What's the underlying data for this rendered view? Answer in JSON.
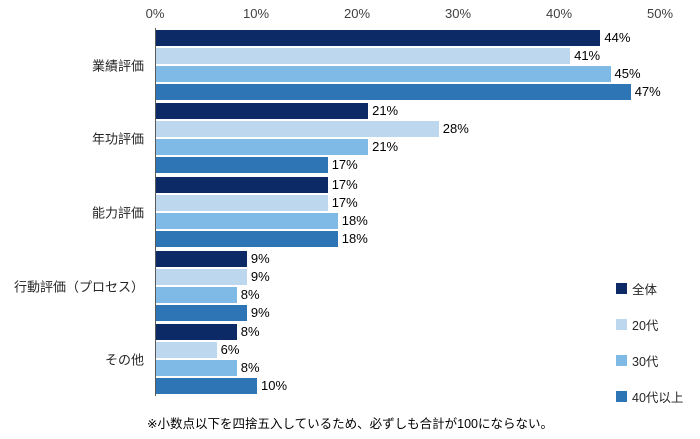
{
  "chart_data": {
    "type": "bar",
    "orientation": "horizontal",
    "title": "",
    "categories": [
      "業績評価",
      "年功評価",
      "能力評価",
      "行動評価（プロセス）",
      "その他"
    ],
    "series": [
      {
        "name": "全体",
        "color": "#0B2A66",
        "values": [
          44,
          21,
          17,
          9,
          8
        ]
      },
      {
        "name": "20代",
        "color": "#BDD7EE",
        "values": [
          41,
          28,
          17,
          9,
          6
        ]
      },
      {
        "name": "30代",
        "color": "#7FB9E6",
        "values": [
          45,
          21,
          18,
          8,
          8
        ]
      },
      {
        "name": "40代以上",
        "color": "#2E75B6",
        "values": [
          47,
          17,
          18,
          9,
          10
        ]
      }
    ],
    "x_axis": {
      "min": 0,
      "max": 50,
      "ticks": [
        "0%",
        "10%",
        "20%",
        "30%",
        "40%",
        "50%"
      ]
    },
    "value_suffix": "%",
    "legend_position": "right",
    "grid": false
  },
  "footnote": "※小数点以下を四捨五入しているため、必ずしも合計が100にならない。"
}
